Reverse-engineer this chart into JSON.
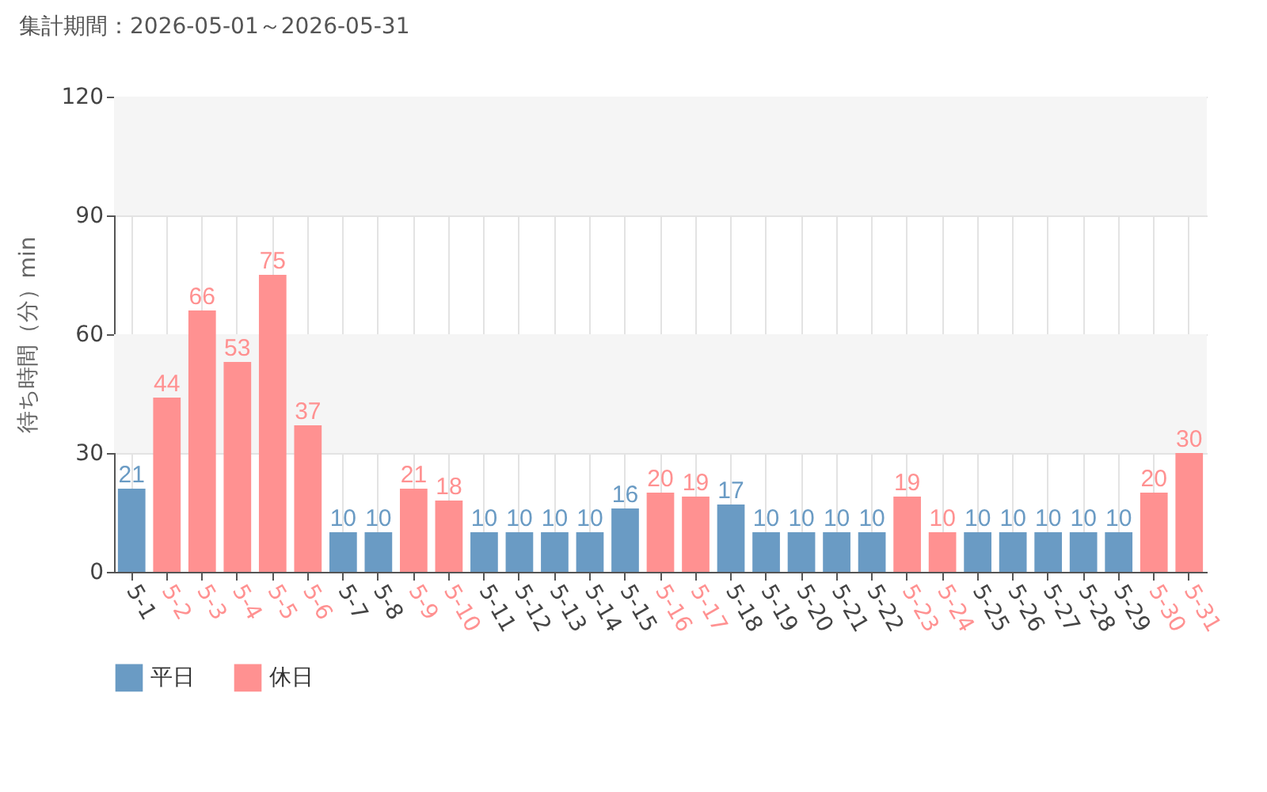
{
  "chart_data": {
    "type": "bar",
    "title": "集計期間：2026-05-01～2026-05-31",
    "ylabel": "待ち時間（分）min",
    "categories": [
      "5-1",
      "5-2",
      "5-3",
      "5-4",
      "5-5",
      "5-6",
      "5-7",
      "5-8",
      "5-9",
      "5-10",
      "5-11",
      "5-12",
      "5-13",
      "5-14",
      "5-15",
      "5-16",
      "5-17",
      "5-18",
      "5-19",
      "5-20",
      "5-21",
      "5-22",
      "5-23",
      "5-24",
      "5-25",
      "5-26",
      "5-27",
      "5-28",
      "5-29",
      "5-30",
      "5-31"
    ],
    "series": [
      {
        "name": "平日",
        "color": "#6a9bc4",
        "values": [
          21,
          null,
          null,
          null,
          null,
          null,
          10,
          10,
          null,
          null,
          10,
          10,
          10,
          10,
          16,
          null,
          null,
          17,
          10,
          10,
          10,
          10,
          null,
          null,
          10,
          10,
          10,
          10,
          10,
          null,
          null
        ]
      },
      {
        "name": "休日",
        "color": "#ff9191",
        "values": [
          null,
          44,
          66,
          53,
          75,
          37,
          null,
          null,
          21,
          18,
          null,
          null,
          null,
          null,
          null,
          20,
          19,
          null,
          null,
          null,
          null,
          null,
          19,
          10,
          null,
          null,
          null,
          null,
          null,
          20,
          30
        ]
      }
    ],
    "ylim": [
      0,
      120
    ],
    "yticks": [
      0,
      30,
      60,
      90,
      120
    ],
    "bands": [
      {
        "axis": "y",
        "from": 30,
        "to": 60,
        "color": "#f5f5f5"
      },
      {
        "axis": "y",
        "from": 90,
        "to": 120,
        "color": "#f5f5f5"
      }
    ],
    "data_labels": true,
    "grid": true,
    "legend": "bottom left"
  }
}
